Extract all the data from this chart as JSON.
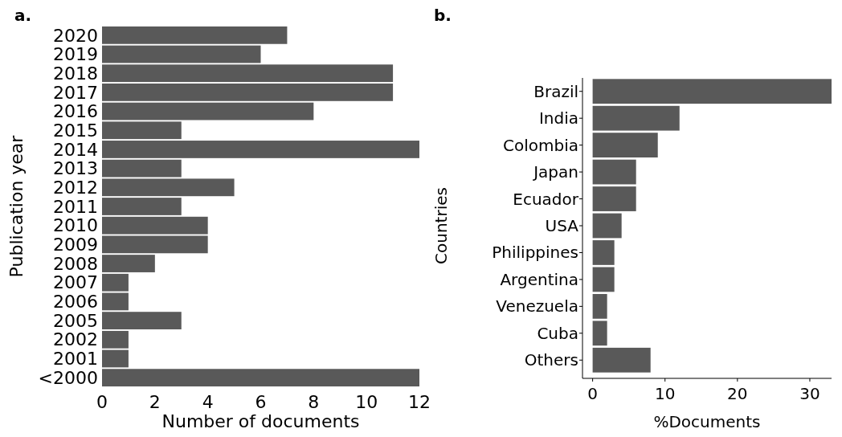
{
  "chart_data": [
    {
      "type": "bar",
      "orientation": "horizontal",
      "title": "a.",
      "xlabel": "Number of documents",
      "ylabel": "Publication year",
      "categories": [
        "2020",
        "2019",
        "2018",
        "2017",
        "2016",
        "2015",
        "2014",
        "2013",
        "2012",
        "2011",
        "2010",
        "2009",
        "2008",
        "2007",
        "2006",
        "2005",
        "2002",
        "2001",
        "<2000"
      ],
      "values": [
        7,
        6,
        11,
        11,
        8,
        3,
        12,
        3,
        5,
        3,
        4,
        4,
        2,
        1,
        1,
        3,
        1,
        1,
        12
      ],
      "color": "#595959",
      "xlim": [
        0,
        12
      ],
      "xticks": [
        0,
        2,
        4,
        6,
        8,
        10,
        12
      ]
    },
    {
      "type": "bar",
      "orientation": "horizontal",
      "title": "b.",
      "xlabel": "%Documents",
      "ylabel": "Countries",
      "categories": [
        "Brazil",
        "India",
        "Colombia",
        "Japan",
        "Ecuador",
        "USA",
        "Philippines",
        "Argentina",
        "Venezuela",
        "Cuba",
        "Others"
      ],
      "values": [
        33,
        12,
        9,
        6,
        6,
        4,
        3,
        3,
        2,
        2,
        8
      ],
      "color": "#595959",
      "xlim": [
        -1.4,
        33
      ],
      "xticks": [
        0,
        10,
        20,
        30
      ]
    }
  ]
}
